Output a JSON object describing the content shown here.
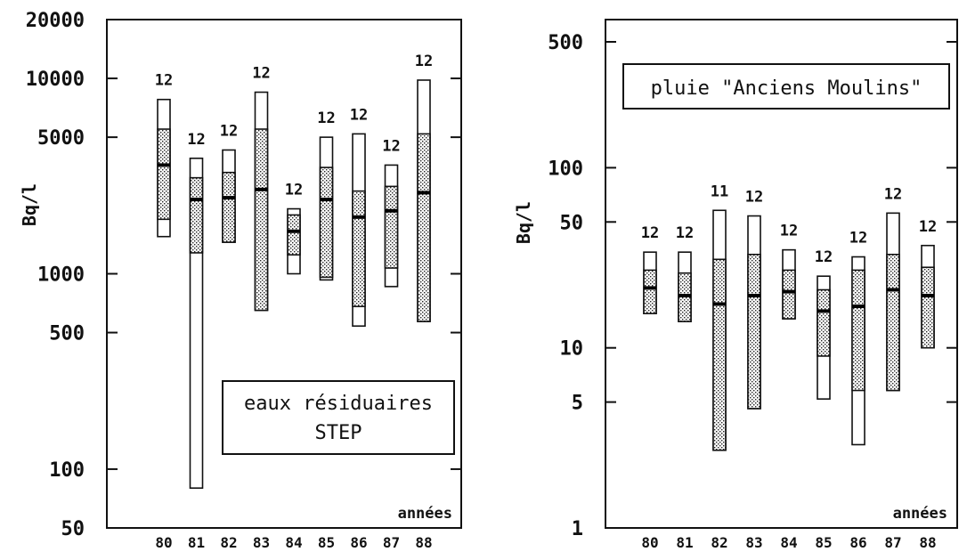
{
  "chart_data": [
    {
      "type": "box",
      "scale": "log",
      "ylabel": "Bq/l",
      "xlabel": "années",
      "annotation": [
        "eaux résiduaires",
        "STEP"
      ],
      "ylim": [
        50,
        20000
      ],
      "yticks": [
        50,
        100,
        500,
        1000,
        5000,
        10000,
        20000
      ],
      "ytick_labels": [
        "50",
        "100",
        "500",
        "1000",
        "5000",
        "10000",
        "20000"
      ],
      "categories": [
        "80",
        "81",
        "82",
        "83",
        "84",
        "85",
        "86",
        "87",
        "88"
      ],
      "boxes": [
        {
          "min": 1550,
          "q1": 1900,
          "median": 3600,
          "q3": 5500,
          "max": 7800,
          "n": "12"
        },
        {
          "min": 80,
          "q1": 1280,
          "median": 2400,
          "q3": 3100,
          "max": 3900,
          "n": "12"
        },
        {
          "min": 1450,
          "q1": 1450,
          "median": 2450,
          "q3": 3300,
          "max": 4300,
          "n": "12"
        },
        {
          "min": 650,
          "q1": 650,
          "median": 2700,
          "q3": 5500,
          "max": 8500,
          "n": "12"
        },
        {
          "min": 1000,
          "q1": 1250,
          "median": 1650,
          "q3": 2000,
          "max": 2150,
          "n": "12"
        },
        {
          "min": 930,
          "q1": 960,
          "median": 2400,
          "q3": 3500,
          "max": 5000,
          "n": "12"
        },
        {
          "min": 540,
          "q1": 680,
          "median": 1950,
          "q3": 2650,
          "max": 5200,
          "n": "12"
        },
        {
          "min": 860,
          "q1": 1070,
          "median": 2100,
          "q3": 2800,
          "max": 3600,
          "n": "12"
        },
        {
          "min": 570,
          "q1": 570,
          "median": 2600,
          "q3": 5200,
          "max": 9800,
          "n": "12"
        }
      ]
    },
    {
      "type": "box",
      "scale": "log",
      "ylabel": "Bq/l",
      "xlabel": "années",
      "annotation": [
        "pluie \"Anciens Moulins\""
      ],
      "ylim": [
        1,
        500
      ],
      "yticks": [
        1,
        5,
        10,
        50,
        100,
        500
      ],
      "ytick_labels": [
        "1",
        "5",
        "10",
        "50",
        "100",
        "500"
      ],
      "categories": [
        "80",
        "81",
        "82",
        "83",
        "84",
        "85",
        "86",
        "87",
        "88"
      ],
      "boxes": [
        {
          "min": 15.5,
          "q1": 15.5,
          "median": 21.5,
          "q3": 27,
          "max": 34,
          "n": "12"
        },
        {
          "min": 14,
          "q1": 14,
          "median": 19.5,
          "q3": 26,
          "max": 34,
          "n": "12"
        },
        {
          "min": 2.7,
          "q1": 2.7,
          "median": 17.5,
          "q3": 31,
          "max": 58,
          "n": "11"
        },
        {
          "min": 4.6,
          "q1": 4.6,
          "median": 19.5,
          "q3": 33,
          "max": 54,
          "n": "12"
        },
        {
          "min": 14.5,
          "q1": 14.5,
          "median": 20.5,
          "q3": 27,
          "max": 35,
          "n": "12"
        },
        {
          "min": 5.2,
          "q1": 9,
          "median": 16,
          "q3": 21,
          "max": 25,
          "n": "12"
        },
        {
          "min": 2.9,
          "q1": 5.8,
          "median": 17,
          "q3": 27,
          "max": 32,
          "n": "12"
        },
        {
          "min": 5.8,
          "q1": 5.8,
          "median": 21,
          "q3": 33,
          "max": 56,
          "n": "12"
        },
        {
          "min": 10,
          "q1": 10,
          "median": 19.5,
          "q3": 28,
          "max": 37,
          "n": "12"
        }
      ]
    }
  ]
}
